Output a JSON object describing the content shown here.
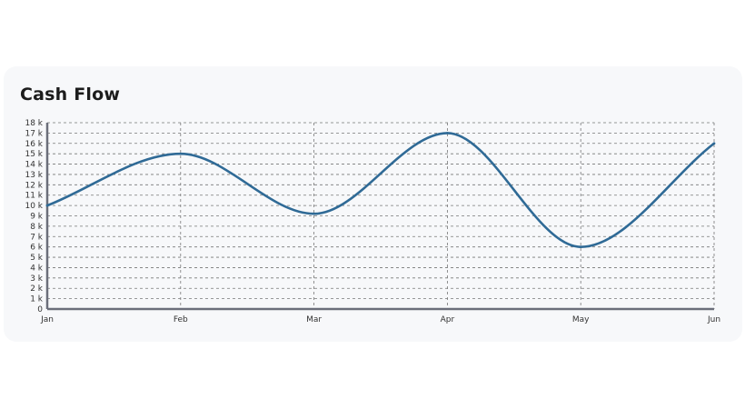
{
  "card": {
    "title": "Cash Flow"
  },
  "colors": {
    "line": "#2f6a96",
    "grid": "#777777",
    "axis": "#6b6e7a",
    "card_bg": "#f7f8fa"
  },
  "chart_data": {
    "type": "line",
    "title": "Cash Flow",
    "xlabel": "",
    "ylabel": "",
    "categories": [
      "Jan",
      "Feb",
      "Mar",
      "Apr",
      "May",
      "Jun"
    ],
    "series": [
      {
        "values": [
          10000,
          15000,
          9200,
          17000,
          6000,
          16000
        ]
      }
    ],
    "ylim": [
      0,
      18000
    ],
    "yticks": [
      0,
      1000,
      2000,
      3000,
      4000,
      5000,
      6000,
      7000,
      8000,
      9000,
      10000,
      11000,
      12000,
      13000,
      14000,
      15000,
      16000,
      17000,
      18000
    ],
    "ytick_labels": [
      "0",
      "1 k",
      "2 k",
      "3 k",
      "4 k",
      "5 k",
      "6 k",
      "7 k",
      "8 k",
      "9 k",
      "10 k",
      "11 k",
      "12 k",
      "13 k",
      "14 k",
      "15 k",
      "16 k",
      "17 k",
      "18 k"
    ],
    "grid": true,
    "grid_style": "dashed",
    "legend": "none",
    "curve": "smooth"
  }
}
